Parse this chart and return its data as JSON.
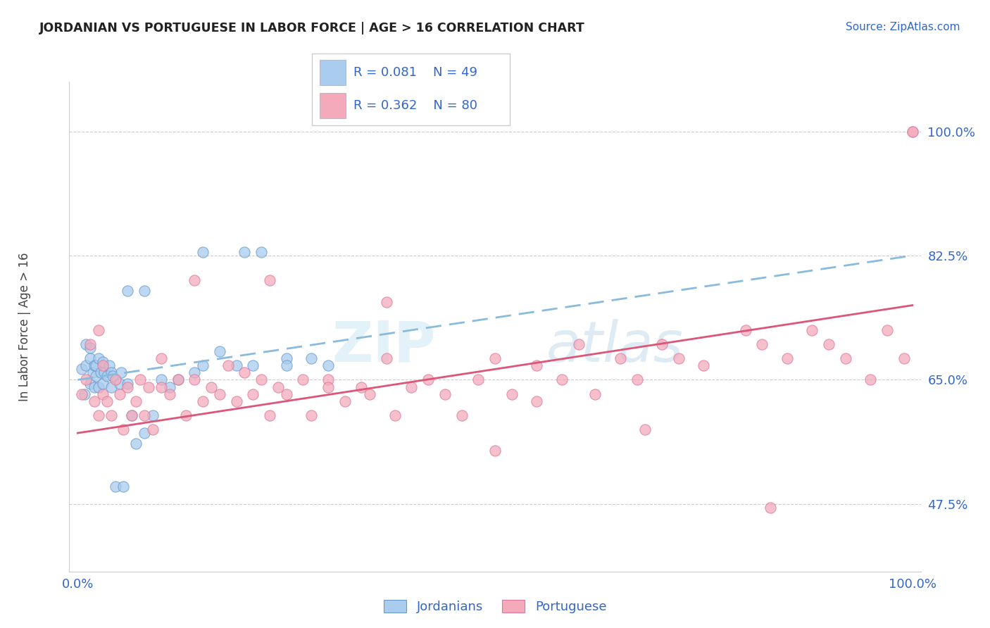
{
  "title": "JORDANIAN VS PORTUGUESE IN LABOR FORCE | AGE > 16 CORRELATION CHART",
  "source_text": "Source: ZipAtlas.com",
  "ylabel": "In Labor Force | Age > 16",
  "x_tick_labels": [
    "0.0%",
    "100.0%"
  ],
  "y_tick_labels": [
    "47.5%",
    "65.0%",
    "82.5%",
    "100.0%"
  ],
  "y_tick_values": [
    0.475,
    0.65,
    0.825,
    1.0
  ],
  "legend_label_1": "Jordanians",
  "legend_label_2": "Portuguese",
  "legend_R1": "R = 0.081",
  "legend_N1": "N = 49",
  "legend_R2": "R = 0.362",
  "legend_N2": "N = 80",
  "color_jordan": "#aaccee",
  "color_jordan_edge": "#6699cc",
  "color_portuguese": "#f4aabb",
  "color_portuguese_edge": "#dd7799",
  "color_jordan_line": "#88bbdd",
  "color_portuguese_line": "#dd5577",
  "color_axis_labels": "#3366cc",
  "background_color": "#ffffff",
  "grid_color": "#cccccc",
  "jordan_points_x": [
    0.005,
    0.008,
    0.01,
    0.01,
    0.015,
    0.015,
    0.015,
    0.018,
    0.02,
    0.02,
    0.022,
    0.022,
    0.025,
    0.025,
    0.028,
    0.03,
    0.03,
    0.032,
    0.035,
    0.038,
    0.04,
    0.04,
    0.042,
    0.045,
    0.05,
    0.052,
    0.055,
    0.06,
    0.065,
    0.07,
    0.08,
    0.09,
    0.1,
    0.11,
    0.12,
    0.14,
    0.15,
    0.17,
    0.19,
    0.21,
    0.25,
    0.28,
    0.3,
    0.15,
    0.2,
    0.22,
    0.25,
    0.06,
    0.08
  ],
  "jordan_points_y": [
    0.665,
    0.63,
    0.67,
    0.7,
    0.645,
    0.68,
    0.695,
    0.66,
    0.64,
    0.67,
    0.655,
    0.67,
    0.64,
    0.68,
    0.66,
    0.645,
    0.675,
    0.66,
    0.655,
    0.67,
    0.64,
    0.66,
    0.655,
    0.5,
    0.645,
    0.66,
    0.5,
    0.645,
    0.6,
    0.56,
    0.575,
    0.6,
    0.65,
    0.64,
    0.65,
    0.66,
    0.67,
    0.69,
    0.67,
    0.67,
    0.68,
    0.68,
    0.67,
    0.83,
    0.83,
    0.83,
    0.67,
    0.775,
    0.775
  ],
  "portuguese_points_x": [
    0.005,
    0.01,
    0.015,
    0.02,
    0.025,
    0.025,
    0.03,
    0.03,
    0.035,
    0.04,
    0.045,
    0.05,
    0.055,
    0.06,
    0.065,
    0.07,
    0.075,
    0.08,
    0.085,
    0.09,
    0.1,
    0.1,
    0.11,
    0.12,
    0.13,
    0.14,
    0.15,
    0.16,
    0.17,
    0.18,
    0.19,
    0.2,
    0.21,
    0.22,
    0.23,
    0.24,
    0.25,
    0.27,
    0.28,
    0.3,
    0.32,
    0.34,
    0.35,
    0.37,
    0.38,
    0.4,
    0.42,
    0.44,
    0.46,
    0.48,
    0.5,
    0.52,
    0.55,
    0.58,
    0.6,
    0.62,
    0.65,
    0.67,
    0.7,
    0.72,
    0.75,
    0.8,
    0.82,
    0.85,
    0.88,
    0.9,
    0.92,
    0.95,
    0.97,
    0.99,
    1.0,
    1.0,
    0.3,
    0.37,
    0.5,
    0.55,
    0.68,
    0.83,
    0.14,
    0.23
  ],
  "portuguese_points_y": [
    0.63,
    0.65,
    0.7,
    0.62,
    0.6,
    0.72,
    0.63,
    0.67,
    0.62,
    0.6,
    0.65,
    0.63,
    0.58,
    0.64,
    0.6,
    0.62,
    0.65,
    0.6,
    0.64,
    0.58,
    0.64,
    0.68,
    0.63,
    0.65,
    0.6,
    0.65,
    0.62,
    0.64,
    0.63,
    0.67,
    0.62,
    0.66,
    0.63,
    0.65,
    0.6,
    0.64,
    0.63,
    0.65,
    0.6,
    0.65,
    0.62,
    0.64,
    0.63,
    0.68,
    0.6,
    0.64,
    0.65,
    0.63,
    0.6,
    0.65,
    0.68,
    0.63,
    0.67,
    0.65,
    0.7,
    0.63,
    0.68,
    0.65,
    0.7,
    0.68,
    0.67,
    0.72,
    0.7,
    0.68,
    0.72,
    0.7,
    0.68,
    0.65,
    0.72,
    0.68,
    1.0,
    1.0,
    0.64,
    0.76,
    0.55,
    0.62,
    0.58,
    0.47,
    0.79,
    0.79
  ],
  "jordan_line_x": [
    0.0,
    1.0
  ],
  "jordan_line_y_start": 0.65,
  "jordan_line_y_end": 0.825,
  "portuguese_line_x": [
    0.0,
    1.0
  ],
  "portuguese_line_y_start": 0.575,
  "portuguese_line_y_end": 0.755,
  "xlim": [
    -0.01,
    1.01
  ],
  "ylim": [
    0.38,
    1.07
  ]
}
